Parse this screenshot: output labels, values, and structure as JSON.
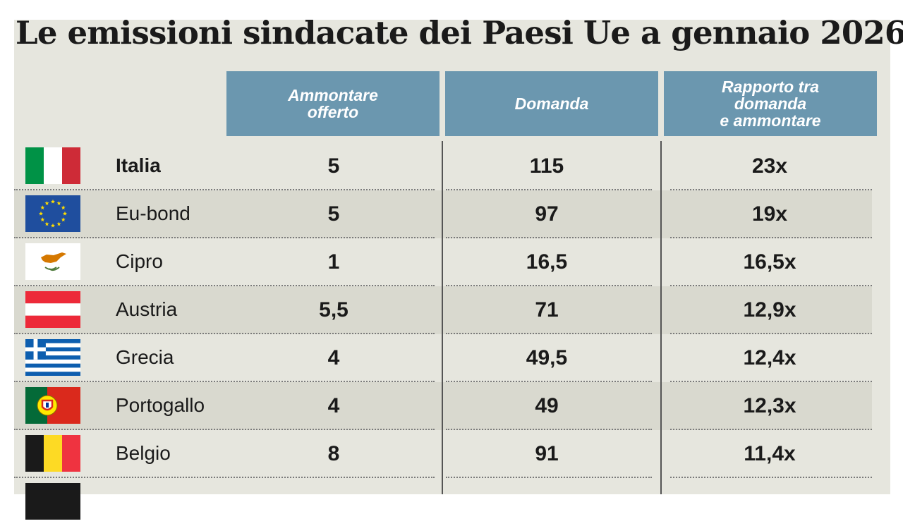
{
  "title": "Le emissioni sindacate dei Paesi Ue a gennaio 2026",
  "headers": {
    "col1": [
      "Ammontare",
      "offerto"
    ],
    "col2": [
      "Domanda"
    ],
    "col3": [
      "Rapporto tra",
      "domanda",
      "e ammontare"
    ]
  },
  "colors": {
    "header_bg": "#6b97af",
    "panel_bg": "#e6e6de",
    "row_shade": "#d9d9cf"
  },
  "chart_data": {
    "type": "table",
    "title": "Le emissioni sindacate dei Paesi Ue a gennaio 2026",
    "columns": [
      "Ammontare offerto",
      "Domanda",
      "Rapporto tra domanda e ammontare"
    ],
    "rows": [
      {
        "country": "Italia",
        "flag": "italy-flag-icon",
        "bold": true,
        "offerto": "5",
        "domanda": "115",
        "rapporto": "23x"
      },
      {
        "country": "Eu-bond",
        "flag": "eu-flag-icon",
        "bold": false,
        "offerto": "5",
        "domanda": "97",
        "rapporto": "19x"
      },
      {
        "country": "Cipro",
        "flag": "cyprus-flag-icon",
        "bold": false,
        "offerto": "1",
        "domanda": "16,5",
        "rapporto": "16,5x"
      },
      {
        "country": "Austria",
        "flag": "austria-flag-icon",
        "bold": false,
        "offerto": "5,5",
        "domanda": "71",
        "rapporto": "12,9x"
      },
      {
        "country": "Grecia",
        "flag": "greece-flag-icon",
        "bold": false,
        "offerto": "4",
        "domanda": "49,5",
        "rapporto": "12,4x"
      },
      {
        "country": "Portogallo",
        "flag": "portugal-flag-icon",
        "bold": false,
        "offerto": "4",
        "domanda": "49",
        "rapporto": "12,3x"
      },
      {
        "country": "Belgio",
        "flag": "belgium-flag-icon",
        "bold": false,
        "offerto": "8",
        "domanda": "91",
        "rapporto": "11,4x"
      }
    ]
  }
}
